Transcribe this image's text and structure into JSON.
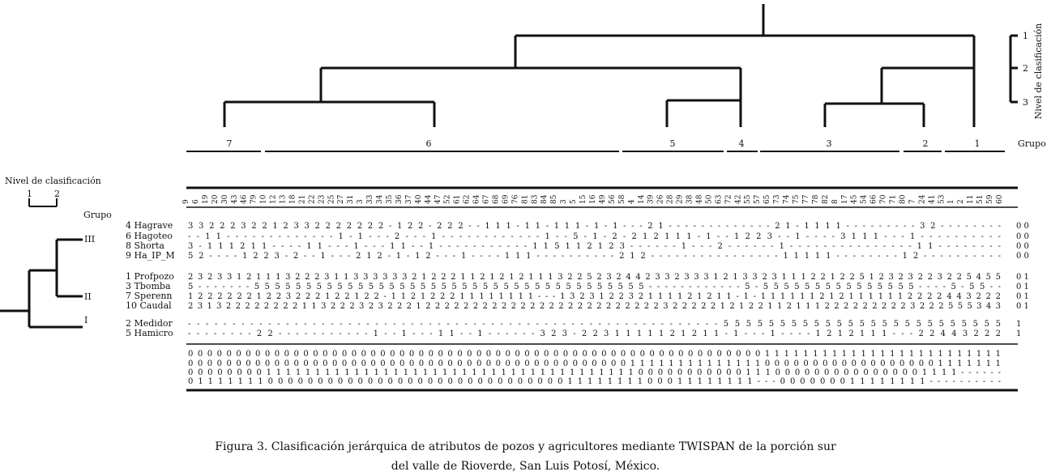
{
  "figure": {
    "group_header": "Grupo",
    "level_header": "Nivel de clasificación",
    "level_ticks_left": [
      "1",
      "2"
    ],
    "level_ticks_right": [
      "1",
      "2",
      "3"
    ],
    "groups": [
      "7",
      "6",
      "5",
      "4",
      "3",
      "2",
      "1"
    ],
    "samples": [
      "9",
      "6",
      "19",
      "20",
      "30",
      "43",
      "46",
      "79",
      "10",
      "12",
      "13",
      "18",
      "21",
      "22",
      "23",
      "25",
      "27",
      "31",
      "3",
      "33",
      "34",
      "35",
      "36",
      "37",
      "40",
      "44",
      "47",
      "52",
      "61",
      "62",
      "64",
      "67",
      "68",
      "69",
      "76",
      "81",
      "83",
      "84",
      "85",
      "3",
      "5",
      "15",
      "16",
      "49",
      "56",
      "58",
      "4",
      "14",
      "39",
      "26",
      "28",
      "29",
      "38",
      "48",
      "50",
      "63",
      "72",
      "42",
      "55",
      "57",
      "65",
      "73",
      "74",
      "75",
      "77",
      "78",
      "82",
      "8",
      "17",
      "45",
      "54",
      "66",
      "70",
      "71",
      "80",
      "7",
      "24",
      "41",
      "53",
      "1",
      "2",
      "11",
      "51",
      "59",
      "60"
    ],
    "species_clusters": [
      "III",
      "II",
      "I"
    ],
    "species": [
      {
        "label": "4 Hagrave",
        "row": "3 3 2 2 2 3 2 2   1 2 3 3 2 2 2 2 2 2 2 - 1 2 2 - 2 2 2 - - 1 1 1 - 1 1 - 1 1 1 - 1 - 1 - - -   2 1 - - - - - - - - - -   - - - 2 1 - 1 1 1 1 - - - - - - - - -   3 2 - -   - - - - - -",
        "code": "0 0"
      },
      {
        "label": "6 Hagoteo",
        "row": "- - 1 1 - - - -   - - - - - - - - - 1 - 1 - - - 2 - - - 1 - - - - - - - - - - - - 1 - - 5 - 1 - 2 -   2 1 2 1 1 1 - 1 - - 1   2 2 3 - - 1 - - - - 3 1 1 1 - - - 1   - - - -   - - - - - -",
        "code": "0 0"
      },
      {
        "label": "8 Shorta",
        "row": "3 - 1 1 1 2 1 1   - - - - 1 1 - - - 1 - - - 1 1 - - 1 - - - - - - - - - - - 1 1 5 1 1 2 1 2 3   - - - - - - 1 - - - 2 -   - - - - - 1 - - - - - - - - - - - - - -   - 1 1 - -   - - - - - -",
        "code": "0 0"
      },
      {
        "label": "9 Ha_IP_M",
        "row": "5 2 - - - - 1 2   2 3 - 2 - - 1 - - - 2 1 2 - 1 - 1 2 - - - 1 - - - - 1 1 1 - - - - - - - - - -   2 1 2 - - - - - - - - -   - - - - - - - 1 1 1 1 1 - - - - - - - -   1 2 - - - -   - - - - - -",
        "code": "0 0"
      },
      {
        "label": "1  Profpozo",
        "row": "2 3 2 3 3 1 2 1   1 1 3 2 2 2 3 1 1 3 3 3 3 3 3 2 1 2 2 2 1 1 2 1 2 1 2 1 1 1 3 2 2 5 2 3 2   4 4 2 3 3 2 3 3 3 1 2   1 3 3 2 3 1 1 1 2 2 1 2 2 5 1 2 3 2   3 2 2 3   2 2 5 4 5 5",
        "code": "0 1"
      },
      {
        "label": "3  Tbomba",
        "row": "5 - - - - - - -   5 5 5 5 5 5 5 5 5 5 5 5 5 5 5 5 5 5 5 5 5 5 5 5 5 5 5 5 5 5 5 5 5 5 5 5 5 5   - - - - - - - - - - -   - 5 - 5 5 5 5 5 5 5 5 5 5 5 5 5 5 5   - - - -   5 - 5 5 - -",
        "code": "0 1"
      },
      {
        "label": "7  Sperenn",
        "row": "1 2 2 2 2 2 2 1   2 2 3 2 2 2 1 2 2 1 2 2 - 1 1 2 1 2 2 2 1 1 1 1 1 1 1 1 - - - 1 3 2 3 1 2 2   3 2 1 1 1 1 2 1 2 1 1   - 1 - 1 1 1 1 1 1 2 1 2 1 1 1 1 1 1   2 2 2 2   4 4 3 2 2 2",
        "code": "0 1"
      },
      {
        "label": "10 Caudal",
        "row": "2 3 1 3 2 2 2 2   2 2 2 2 1 1 3 2 2 2 3 2 3 2 2 2 1 2 2 2 2 2 2 2 2 2 2 2 2 2 2 2 2 2 2 2 2 2   2 2 2 2 3 2 2 2 2 2 1 2   1 2 2 1 1 2 1 1 1 2 2 2 2 2 2 2 2 2   3 2 2 2   5 5 5 3 4 3",
        "code": "0 1"
      },
      {
        "label": "2 Medidor",
        "row": "- - - - - - - -   - - - - - - - - - - - - - - - - - - - - - - - - - - - - - - - - - - - - - -   - - - - - - - - - - -   - - - 5 5 5 5 5 5 5 5 5 5 5 5 5 5 5   5 5 5 5   5 5 5 5 5 5",
        "code": "1"
      },
      {
        "label": "5 Hamicro",
        "row": "- - - - - - - -   2 2 - - - - - - - - - - - 1 - - 1 - - - 1 1 - - 1 - - - - - - 3 2 3 - 2 2   3 1 1 1 1 1 2 1 2 1 1   - 1 - - - 1 - - - - 1 2 1 2 1 1 1 -   - - 2 2   4 4 3 2 2 2",
        "code": "1"
      }
    ],
    "codes": [
      "0 0 0 0 0 0 0 0   0 0 0 0 0 0 0 0 0 0 0 0 0 0 0 0 0 0 0 0 0 0 0 0 0 0 0 0 0 0 0 0 0 0 0 0 0 0   0 0 0 0 0 0 0 0 0 0 0   0 0 0 1 1 1 1 1 1 1 1 1 1 1 1 1 1 1   1 1 1 1   1 1 1 1 1 1",
      "0 0 0 0 0 0 0 0   0 0 0 0 0 0 0 0 0 0 0 0 0 0 0 0 0 0 0 0 0 0 0 0 0 0 0 0 0 0 0 0 0 0 0 0 0 0   1 1 1 1 1 1 1 1 1 1 1   1 1 1 0 0 0 0 0 0 0 0 0 0 0 0 0 0 0   0 0 0 1   1 1 1 1 1 1",
      "0 0 0 0 0 0 0 0   1 1 1 1 1 1 1 1 1 1 1 1 1 1 1 1 1 1 1 1 1 1 1 1 1 1 1 1 1 1 1 1 1 1 1 1 1 1   0 0 0 0 0 0 0 0 0 0 0   1 1 1 0 0 0 0 0 0 0 0 0 0 0 0 0 0 0   1 1 1 1   - - - - - -",
      "0 1 1 1 1 1 1 1   0 0 0 0 0 0 0 0 0 0 0 0 0 0 0 0 0 0 0 0 0 0 0 0 0 0 0 0 0 0 1 1 1 1 1 1 1 1   0 0 0 1 1 1 1 1 1 1 1   - - - 0 0 0 0 0 0 0 1 1 1 1 1 1 1 1   - - - -   - - - - - -"
    ]
  },
  "caption": {
    "line1": "Figura 3. Clasificación jerárquica de atributos de pozos y agricultores mediante TWISPAN de la porción sur",
    "line2": "del valle de Rioverde, San Luis Potosí, México."
  }
}
